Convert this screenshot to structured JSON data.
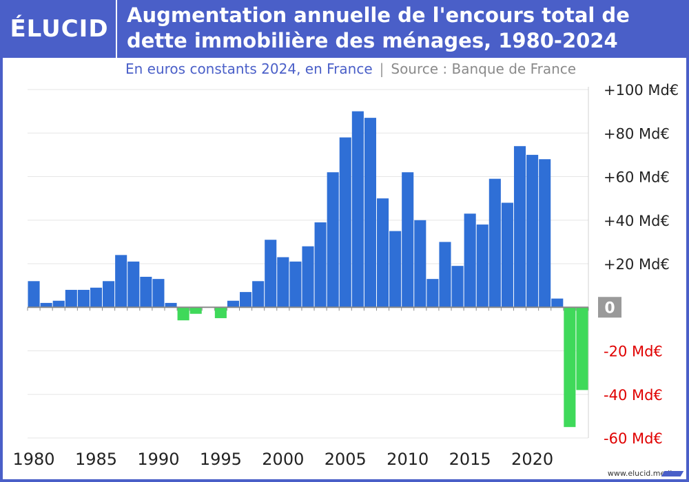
{
  "logo": "ÉLUCID",
  "title": "Augmentation annuelle de l'encours total de dette immobilière des ménages, 1980-2024",
  "subtitle": "En euros constants 2024, en France",
  "source": "Source : Banque de France",
  "footer": "www.elucid.media",
  "colors": {
    "brand": "#4a5fc8",
    "positive_bar": "#2f6fd6",
    "negative_bar": "#3fd95a",
    "negative_label": "#e00000",
    "zero_badge": "#9a9a9a"
  },
  "chart_data": {
    "type": "bar",
    "x": [
      1980,
      1981,
      1982,
      1983,
      1984,
      1985,
      1986,
      1987,
      1988,
      1989,
      1990,
      1991,
      1992,
      1993,
      1994,
      1995,
      1996,
      1997,
      1998,
      1999,
      2000,
      2001,
      2002,
      2003,
      2004,
      2005,
      2006,
      2007,
      2008,
      2009,
      2010,
      2011,
      2012,
      2013,
      2014,
      2015,
      2016,
      2017,
      2018,
      2019,
      2020,
      2021,
      2022,
      2023,
      2024
    ],
    "values": [
      12,
      2,
      3,
      8,
      8,
      9,
      12,
      24,
      21,
      14,
      13,
      2,
      -6,
      -3,
      0,
      -5,
      3,
      7,
      12,
      31,
      23,
      21,
      28,
      39,
      62,
      78,
      90,
      87,
      50,
      35,
      62,
      40,
      13,
      30,
      19,
      43,
      38,
      59,
      48,
      74,
      70,
      68,
      4,
      -55,
      -38
    ],
    "x_tick_labels": [
      "1980",
      "1985",
      "1990",
      "1995",
      "2000",
      "2005",
      "2010",
      "2015",
      "2020"
    ],
    "y_tick_labels": [
      {
        "value": 100,
        "label": "+100 Md€"
      },
      {
        "value": 80,
        "label": "+80 Md€"
      },
      {
        "value": 60,
        "label": "+60 Md€"
      },
      {
        "value": 40,
        "label": "+40 Md€"
      },
      {
        "value": 20,
        "label": "+20 Md€"
      },
      {
        "value": 0,
        "label": "0"
      },
      {
        "value": -20,
        "label": "-20 Md€"
      },
      {
        "value": -40,
        "label": "-40 Md€"
      },
      {
        "value": -60,
        "label": "-60 Md€"
      }
    ],
    "ylim": [
      -60,
      100
    ],
    "grid": true,
    "y_axis_side": "right"
  }
}
